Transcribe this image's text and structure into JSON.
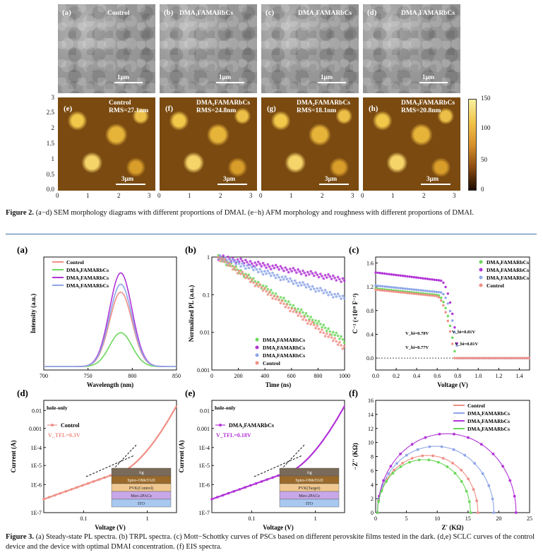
{
  "figure2": {
    "sem_panels": [
      {
        "label": "(a)",
        "name": "Control",
        "scale": "1μm"
      },
      {
        "label": "(b)",
        "name": "DMA₁FAMARbCs",
        "scale": "1μm"
      },
      {
        "label": "(c)",
        "name": "DMA₂FAMARbCs",
        "scale": "1μm"
      },
      {
        "label": "(d)",
        "name": "DMA₃FAMARbCs",
        "scale": "1μm"
      }
    ],
    "afm_panels": [
      {
        "label": "(e)",
        "name": "Control",
        "rms": "RMS=27.1nm",
        "scale": "3μm"
      },
      {
        "label": "(f)",
        "name": "DMA₁FAMARbCs",
        "rms": "RMS=24.8nm",
        "scale": "3μm"
      },
      {
        "label": "(g)",
        "name": "DMA₂FAMARbCs",
        "rms": "RMS=18.1nm",
        "scale": "3μm"
      },
      {
        "label": "(h)",
        "name": "DMA₃FAMARbCs",
        "rms": "RMS=20.8nm",
        "scale": "3μm"
      }
    ],
    "afm_y_ticks": [
      "3",
      "2.5",
      "2",
      "1.5",
      "1",
      "0.5",
      "0.0"
    ],
    "afm_x_ticks": [
      "0",
      "1",
      "2",
      "3"
    ],
    "colorbar_ticks": [
      "150",
      "100",
      "50",
      "0"
    ],
    "caption_head": "Figure 2.",
    "caption": "(a−d) SEM morphology diagrams with different proportions of DMAI. (e−h) AFM morphology and roughness with different proportions of DMAI."
  },
  "figure3": {
    "caption_head": "Figure 3.",
    "caption": "(a) Steady-state PL spectra. (b) TRPL spectra. (c) Mott−Schottky curves of PSCs based on different perovskite films tested in the dark. (d,e) SCLC curves of the control device and the device with optimal DMAI concentration. (f) EIS spectra.",
    "colors": {
      "control": "#ef8f86",
      "dma1": "#8ea6e8",
      "dma2": "#b234d6",
      "dma3": "#6ad85a"
    }
  },
  "chart_data": [
    {
      "id": "a",
      "type": "line",
      "panel_label": "(a)",
      "xlabel": "Wavelength (nm)",
      "ylabel": "Intensity (a.u.)",
      "xlim": [
        700,
        850
      ],
      "x_ticks": [
        "700",
        "750",
        "800",
        "850"
      ],
      "legend": [
        "Control",
        "DMA₃FAMARbCs",
        "DMA₂FAMARbCs",
        "DMA₁FAMARbCs"
      ],
      "peak_nm": 787,
      "fwhm_nm": 30,
      "series": [
        {
          "name": "Control",
          "key": "control",
          "peak": 0.66
        },
        {
          "name": "DMA₃FAMARbCs",
          "key": "dma3",
          "peak": 0.3
        },
        {
          "name": "DMA₂FAMARbCs",
          "key": "dma2",
          "peak": 0.83
        },
        {
          "name": "DMA₁FAMARbCs",
          "key": "dma1",
          "peak": 0.73
        }
      ]
    },
    {
      "id": "b",
      "type": "scatter",
      "panel_label": "(b)",
      "xlabel": "Time (ns)",
      "ylabel": "Normalized PL (a.u.)",
      "xlim": [
        0,
        1000
      ],
      "ylim_log": [
        0.001,
        1
      ],
      "x_ticks": [
        "0",
        "200",
        "400",
        "600",
        "800",
        "1000"
      ],
      "y_ticks": [
        "1",
        "0.1",
        "0.01",
        "0.001"
      ],
      "legend": [
        "DMA₃FAMARbCs",
        "DMA₂FAMARbCs",
        "DMA₁FAMARbCs",
        "Control"
      ],
      "series": [
        {
          "name": "DMA₃FAMARbCs",
          "key": "dma3",
          "y_at_1000": 0.006
        },
        {
          "name": "DMA₂FAMARbCs",
          "key": "dma2",
          "y_at_1000": 0.25
        },
        {
          "name": "DMA₁FAMARbCs",
          "key": "dma1",
          "y_at_1000": 0.08
        },
        {
          "name": "Control",
          "key": "control",
          "y_at_1000": 0.004
        }
      ]
    },
    {
      "id": "c",
      "type": "scatter",
      "panel_label": "(c)",
      "xlabel": "Voltage (V)",
      "ylabel": "C⁻² (×10¹⁸ F⁻²)",
      "xlim": [
        0,
        1.5
      ],
      "ylim": [
        -0.2,
        1.7
      ],
      "x_ticks": [
        "0.0",
        "0.2",
        "0.4",
        "0.6",
        "0.8",
        "1.0",
        "1.2",
        "1.4"
      ],
      "y_ticks": [
        "1.6",
        "1.2",
        "0.8",
        "0.4",
        "0.0"
      ],
      "legend": [
        "DMA₃FAMARbCs",
        "DMA₂FAMARbCs",
        "DMA₁FAMARbCs",
        "Control"
      ],
      "annotations": [
        "V_bi=0.78V",
        "V_bi=0.81V",
        "V_bi=0.77V",
        "V_bi=0.81V"
      ],
      "series": [
        {
          "name": "DMA₃FAMARbCs",
          "key": "dma3",
          "plateau": 1.17,
          "vbi": 0.78
        },
        {
          "name": "DMA₂FAMARbCs",
          "key": "dma2",
          "plateau": 1.44,
          "vbi": 0.81
        },
        {
          "name": "DMA₁FAMARbCs",
          "key": "dma1",
          "plateau": 1.22,
          "vbi": 0.81
        },
        {
          "name": "Control",
          "key": "control",
          "plateau": 1.15,
          "vbi": 0.77
        }
      ]
    },
    {
      "id": "d",
      "type": "line",
      "panel_label": "(d)",
      "xlabel": "Voltage (V)",
      "ylabel": "Current (A)",
      "title_note": "hole-only",
      "legend": [
        "Control"
      ],
      "vtfl": "V_TFL=0.3V",
      "y_ticks": [
        "0.01",
        "0.001",
        "1E-4",
        "1E-5",
        "1E-6",
        "1E-7"
      ],
      "x_ticks": [
        "0.1",
        "1"
      ],
      "device_layers": [
        "Ag",
        "Spiro-OMeTAD",
        "PVK(Control)",
        "Meo-2PACz",
        "ITO"
      ]
    },
    {
      "id": "e",
      "type": "line",
      "panel_label": "(e)",
      "xlabel": "Voltage (V)",
      "ylabel": "Current (A)",
      "title_note": "hole-only",
      "legend": [
        "DMA₂FAMARbCs"
      ],
      "vtfl": "V_TFL=0.18V",
      "y_ticks": [
        "0.01",
        "0.001",
        "1E-4",
        "1E-5",
        "1E-6",
        "1E-7"
      ],
      "x_ticks": [
        "0.1",
        "1"
      ],
      "device_layers": [
        "Ag",
        "Spiro-OMeTAD",
        "PVK(Target)",
        "Meo-2PACz",
        "ITO"
      ]
    },
    {
      "id": "f",
      "type": "scatter",
      "panel_label": "(f)",
      "xlabel": "Z' (KΩ)",
      "ylabel": "−Z'' (KΩ)",
      "xlim": [
        0,
        25
      ],
      "ylim": [
        0,
        16
      ],
      "x_ticks": [
        "0",
        "5",
        "10",
        "15",
        "20",
        "25"
      ],
      "y_ticks": [
        "16",
        "14",
        "12",
        "10",
        "8",
        "6",
        "4",
        "2",
        "0"
      ],
      "legend": [
        "Control",
        "DMA₁FAMARbCs",
        "DMA₂FAMARbCs",
        "DMA₃FAMARbCs"
      ],
      "series": [
        {
          "name": "Control",
          "key": "control",
          "rs": 0.3,
          "r_end": 16.6
        },
        {
          "name": "DMA₁FAMARbCs",
          "key": "dma1",
          "rs": 0.3,
          "r_end": 19.2
        },
        {
          "name": "DMA₂FAMARbCs",
          "key": "dma2",
          "rs": 0.3,
          "r_end": 22.8
        },
        {
          "name": "DMA₃FAMARbCs",
          "key": "dma3",
          "rs": 0.3,
          "r_end": 15.4
        }
      ]
    }
  ]
}
